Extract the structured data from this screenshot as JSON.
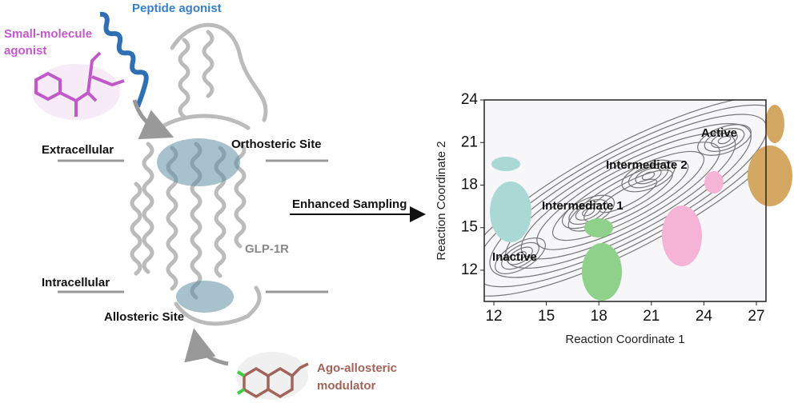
{
  "labels": {
    "peptide_agonist": "Peptide agonist",
    "small_molecule_agonist": [
      "Small-molecule",
      "agonist"
    ],
    "extracellular": "Extracellular",
    "orthosteric_site": "Orthosteric Site",
    "enhanced_sampling": "Enhanced Sampling",
    "receptor": "GLP-1R",
    "intracellular": "Intracellular",
    "allosteric_site": "Allosteric Site",
    "ago_allosteric_modulator": [
      "Ago-allosteric",
      "modulator"
    ]
  },
  "energy_landscape": {
    "xlabel": "Reaction Coordinate 1",
    "ylabel": "Reaction Coordinate 2",
    "xlim": [
      11.45,
      27.55
    ],
    "ylim": [
      9.8,
      24
    ],
    "xticks": [
      12,
      15,
      18,
      21,
      24,
      27
    ],
    "yticks": [
      12,
      15,
      18,
      21,
      24
    ],
    "states": [
      "Inactive",
      "Intermediate 1",
      "Intermediate 2",
      "Active"
    ]
  }
}
